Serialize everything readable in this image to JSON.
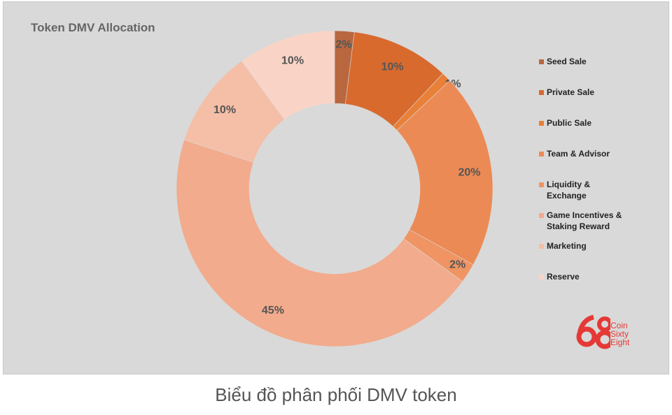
{
  "chart_data": {
    "type": "pie",
    "title": "Token DMV Allocation",
    "donut": true,
    "legend_position": "right",
    "slices": [
      {
        "label": "Seed Sale",
        "value": 2,
        "display": "2%",
        "color": "#b8673f"
      },
      {
        "label": "Private Sale",
        "value": 10,
        "display": "10%",
        "color": "#d86a2e"
      },
      {
        "label": "Public Sale",
        "value": 1,
        "display": "1%",
        "color": "#e98038"
      },
      {
        "label": "Team & Advisor",
        "value": 20,
        "display": "20%",
        "color": "#ec8a55"
      },
      {
        "label": "Liquidity & Exchange",
        "value": 2,
        "display": "2%",
        "color": "#ef9462"
      },
      {
        "label": "Game Incentives & Staking Reward",
        "value": 45,
        "display": "45%",
        "color": "#f2ab8c"
      },
      {
        "label": "Marketing",
        "value": 10,
        "display": "10%",
        "color": "#f5bea6"
      },
      {
        "label": "Reserve",
        "value": 10,
        "display": "10%",
        "color": "#f9d4c6"
      }
    ],
    "legend_lines": [
      [
        "Seed Sale"
      ],
      [
        "Private Sale"
      ],
      [
        "Public Sale"
      ],
      [
        "Team & Advisor"
      ],
      [
        "Liquidity &",
        "Exchange"
      ],
      [
        "Game Incentives &",
        "Staking Reward"
      ],
      [
        "Marketing"
      ],
      [
        "Reserve"
      ]
    ]
  },
  "logo": {
    "mark": "68",
    "text": "Coin\nSixty\nEight",
    "color": "#e53935"
  },
  "caption": "Biểu đồ phân phối DMV token"
}
